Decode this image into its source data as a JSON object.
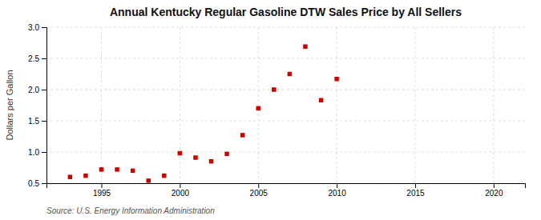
{
  "chart_data": {
    "type": "scatter",
    "title": "Annual Kentucky Regular Gasoline DTW Sales Price by All Sellers",
    "ylabel": "Dollars per Gallon",
    "annotation": "Source: U.S. Energy Information Administration",
    "x": [
      1993,
      1994,
      1995,
      1996,
      1997,
      1998,
      1999,
      2000,
      2001,
      2002,
      2003,
      2004,
      2005,
      2006,
      2007,
      2008,
      2009,
      2010
    ],
    "values": [
      0.6,
      0.62,
      0.72,
      0.72,
      0.7,
      0.54,
      0.62,
      0.98,
      0.91,
      0.85,
      0.97,
      1.27,
      1.7,
      2.0,
      2.25,
      2.69,
      1.83,
      2.17
    ],
    "color": "#cc0000",
    "marker": "square",
    "xlim": [
      1991.5,
      2022
    ],
    "ylim": [
      0.5,
      3.0
    ],
    "xticks": [
      1995,
      2000,
      2005,
      2010,
      2015,
      2020
    ],
    "yticks": [
      0.5,
      {
        "value": 1.0,
        "label": "1.0"
      },
      1.5,
      {
        "value": 2.0,
        "label": "2.0"
      },
      2.5,
      {
        "value": 3.0,
        "label": "3.0"
      }
    ],
    "grid": true
  }
}
